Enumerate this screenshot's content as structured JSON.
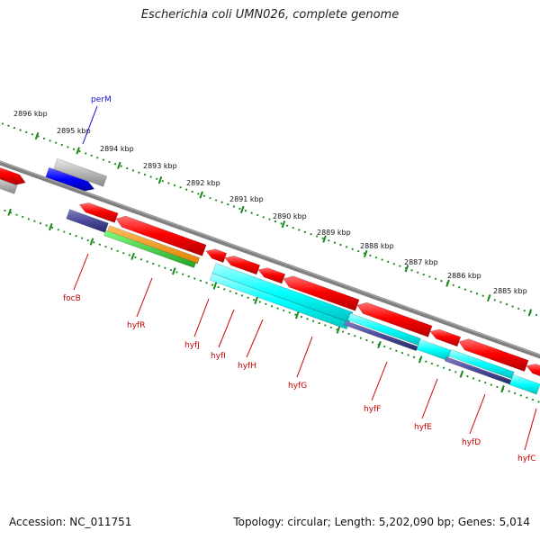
{
  "title": "Escherichia coli UMN026, complete genome",
  "footer": {
    "accession": "Accession: NC_011751",
    "topology": "Topology: circular; Length: 5,202,090 bp; Genes: 5,014"
  },
  "colors": {
    "backbone": "#808080",
    "tick": "#1a8a1a",
    "gene_red": "#ff0000",
    "gene_blue": "#0000ff",
    "gene_gray": "#b0b0b0",
    "cyan": "#00ffff",
    "indigo": "#4a4a9a",
    "orange": "#ff9900",
    "green": "#33cc33",
    "label_red": "#cc0000",
    "label_blue": "#1010cc"
  },
  "kbp_labels": [
    "2896 kbp",
    "2895 kbp",
    "2894 kbp",
    "2893 kbp",
    "2892 kbp",
    "2891 kbp",
    "2890 kbp",
    "2889 kbp",
    "2888 kbp",
    "2887 kbp",
    "2886 kbp",
    "2885 kbp"
  ],
  "gene_labels": [
    "perM",
    "focB",
    "hyfR",
    "hyfJ",
    "hyfI",
    "hyfH",
    "hyfG",
    "hyfF",
    "hyfE",
    "hyfD",
    "hyfC"
  ]
}
